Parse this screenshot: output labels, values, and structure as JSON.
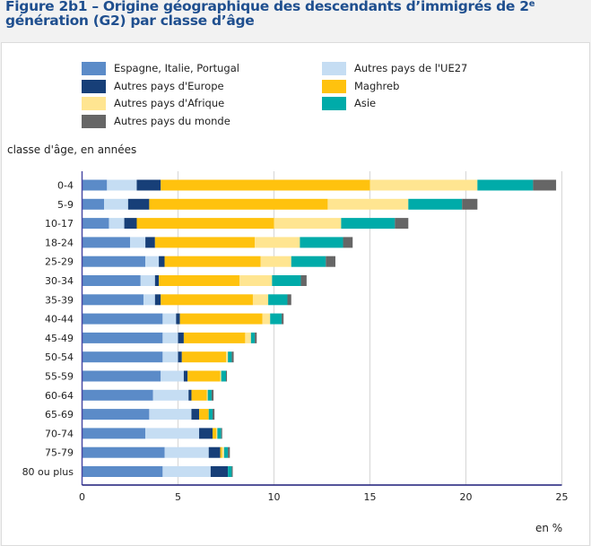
{
  "title": {
    "main": "Figure 2b1 – Origine géographique des descendants d’immigrés de 2",
    "sup": "e",
    "rest": " génération (G2) par classe d’âge"
  },
  "chart_data": {
    "type": "bar",
    "orientation": "horizontal",
    "stacked": true,
    "title": "Figure 2b1 – Origine géographique des descendants d’immigrés de 2e génération (G2) par classe d’âge",
    "ylabel": "classe d'âge, en années",
    "xlabel": "en %",
    "xlim": [
      0,
      25
    ],
    "xticks": [
      0,
      5,
      10,
      15,
      20,
      25
    ],
    "grid": true,
    "legend_position": "top",
    "categories": [
      "0-4",
      "5-9",
      "10-17",
      "18-24",
      "25-29",
      "30-34",
      "35-39",
      "40-44",
      "45-49",
      "50-54",
      "55-59",
      "60-64",
      "65-69",
      "70-74",
      "75-79",
      "80 ou plus"
    ],
    "series": [
      {
        "name": "Espagne, Italie, Portugal",
        "color": "#5b8bc8",
        "values": [
          1.3,
          1.15,
          1.4,
          2.5,
          3.3,
          3.05,
          3.2,
          4.2,
          4.2,
          4.2,
          4.1,
          3.7,
          3.5,
          3.3,
          4.3,
          4.2
        ]
      },
      {
        "name": "Autres pays de l'UE27",
        "color": "#c5ddf3",
        "values": [
          1.55,
          1.25,
          0.8,
          0.8,
          0.7,
          0.75,
          0.6,
          0.7,
          0.8,
          0.8,
          1.2,
          1.85,
          2.2,
          2.8,
          2.3,
          2.5
        ]
      },
      {
        "name": "Autres pays d'Europe",
        "color": "#173f78",
        "values": [
          1.25,
          1.1,
          0.65,
          0.5,
          0.3,
          0.2,
          0.3,
          0.2,
          0.3,
          0.2,
          0.2,
          0.15,
          0.4,
          0.7,
          0.6,
          0.9
        ]
      },
      {
        "name": "Maghreb",
        "color": "#ffc20e",
        "values": [
          10.9,
          9.3,
          7.15,
          5.2,
          5.0,
          4.2,
          4.8,
          4.3,
          3.2,
          2.3,
          1.7,
          0.8,
          0.5,
          0.2,
          0.1,
          0.0
        ]
      },
      {
        "name": "Autres pays d'Afrique",
        "color": "#ffe591",
        "values": [
          5.6,
          4.2,
          3.5,
          2.35,
          1.6,
          1.7,
          0.8,
          0.4,
          0.3,
          0.1,
          0.05,
          0.05,
          0.0,
          0.05,
          0.1,
          0.0
        ]
      },
      {
        "name": "Asie",
        "color": "#00aba9",
        "values": [
          2.9,
          2.8,
          2.8,
          2.25,
          1.8,
          1.5,
          1.0,
          0.6,
          0.2,
          0.2,
          0.25,
          0.2,
          0.2,
          0.2,
          0.2,
          0.2
        ]
      },
      {
        "name": "Autres pays du monde",
        "color": "#666666",
        "values": [
          1.2,
          0.8,
          0.7,
          0.5,
          0.5,
          0.3,
          0.2,
          0.1,
          0.1,
          0.1,
          0.05,
          0.1,
          0.1,
          0.05,
          0.1,
          0.05
        ]
      }
    ]
  },
  "legend": [
    {
      "label": "Espagne, Italie, Portugal",
      "color": "#5b8bc8",
      "col": 0,
      "row": 0
    },
    {
      "label": "Autres pays d'Europe",
      "color": "#173f78",
      "col": 0,
      "row": 1
    },
    {
      "label": "Autres pays d'Afrique",
      "color": "#ffe591",
      "col": 0,
      "row": 2
    },
    {
      "label": "Autres pays du monde",
      "color": "#666666",
      "col": 0,
      "row": 3
    },
    {
      "label": "Autres pays de l'UE27",
      "color": "#c5ddf3",
      "col": 1,
      "row": 0
    },
    {
      "label": "Maghreb",
      "color": "#ffc20e",
      "col": 1,
      "row": 1
    },
    {
      "label": "Asie",
      "color": "#00aba9",
      "col": 1,
      "row": 2
    }
  ],
  "axis": {
    "ylabel": "classe d'âge, en années",
    "unit": "en %"
  }
}
